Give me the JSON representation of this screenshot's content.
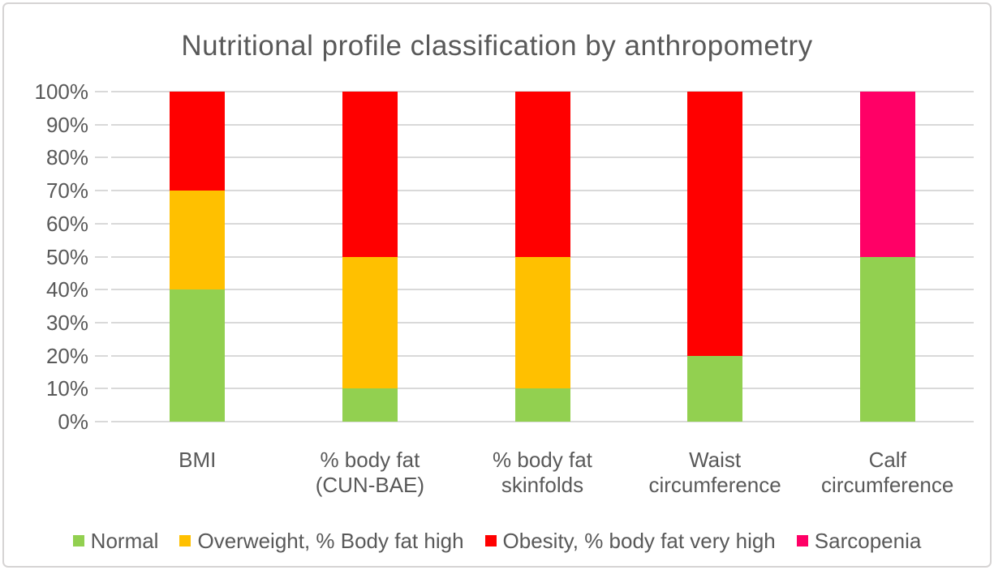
{
  "chart_data": {
    "type": "bar",
    "stacked": true,
    "title": "Nutritional profile classification by anthropometry",
    "categories": [
      {
        "id": "bmi",
        "label": "BMI",
        "lines": [
          "BMI"
        ]
      },
      {
        "id": "body-fat-cun-bae",
        "label": "% body fat (CUN-BAE)",
        "lines": [
          "% body fat",
          "(CUN-BAE)"
        ]
      },
      {
        "id": "body-fat-skinfolds",
        "label": "% body fat skinfolds",
        "lines": [
          "% body fat",
          "skinfolds"
        ]
      },
      {
        "id": "waist-circumference",
        "label": "Waist circumference",
        "lines": [
          "Waist",
          "circumference"
        ]
      },
      {
        "id": "calf-circumference",
        "label": "Calf circumference",
        "lines": [
          "Calf",
          "circumference"
        ]
      }
    ],
    "series": [
      {
        "id": "normal",
        "name": "Normal",
        "color": "#92D050",
        "values": [
          40,
          10,
          10,
          20,
          50
        ]
      },
      {
        "id": "overweight-body-fat-high",
        "name": "Overweight, % Body fat high",
        "color": "#FFC000",
        "values": [
          30,
          40,
          40,
          0,
          0
        ]
      },
      {
        "id": "obesity-body-fat-very-high",
        "name": "Obesity, % body fat very high",
        "color": "#FF0000",
        "values": [
          30,
          50,
          50,
          80,
          0
        ]
      },
      {
        "id": "sarcopenia",
        "name": "Sarcopenia",
        "color": "#FF0066",
        "values": [
          0,
          0,
          0,
          0,
          50
        ]
      }
    ],
    "y_axis": {
      "min": 0,
      "max": 100,
      "step": 10,
      "tick_suffix": "%",
      "tick_labels": [
        "0%",
        "10%",
        "20%",
        "30%",
        "40%",
        "50%",
        "60%",
        "70%",
        "80%",
        "90%",
        "100%"
      ]
    },
    "xlabel": "",
    "ylabel": "",
    "ylim": [
      0,
      100
    ],
    "grid": true,
    "legend_position": "bottom"
  },
  "colors": {
    "text": "#595959",
    "gridline": "#D9D9D9",
    "frame_border": "#D6D4D4",
    "background": "#FFFFFF"
  }
}
